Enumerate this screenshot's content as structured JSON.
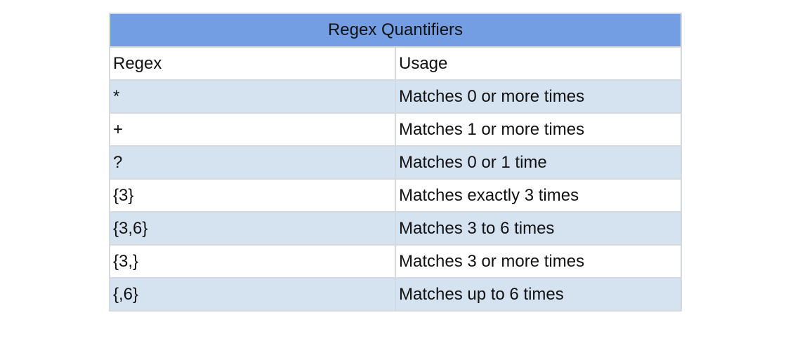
{
  "table": {
    "title": "Regex Quantifiers",
    "headers": [
      "Regex",
      "Usage"
    ],
    "rows": [
      {
        "regex": "*",
        "usage": "Matches 0 or more times"
      },
      {
        "regex": "+",
        "usage": "Matches 1 or more times"
      },
      {
        "regex": "?",
        "usage": "Matches 0 or 1 time"
      },
      {
        "regex": "{3}",
        "usage": "Matches exactly 3 times"
      },
      {
        "regex": "{3,6}",
        "usage": "Matches 3 to 6 times"
      },
      {
        "regex": "{3,}",
        "usage": "Matches 3 or more times"
      },
      {
        "regex": "{,6}",
        "usage": "Matches up to 6 times"
      }
    ]
  },
  "colors": {
    "title_background": "#739ee3",
    "shaded_row": "#d5e3f1",
    "plain_row": "#ffffff",
    "border": "#d6d9de"
  }
}
